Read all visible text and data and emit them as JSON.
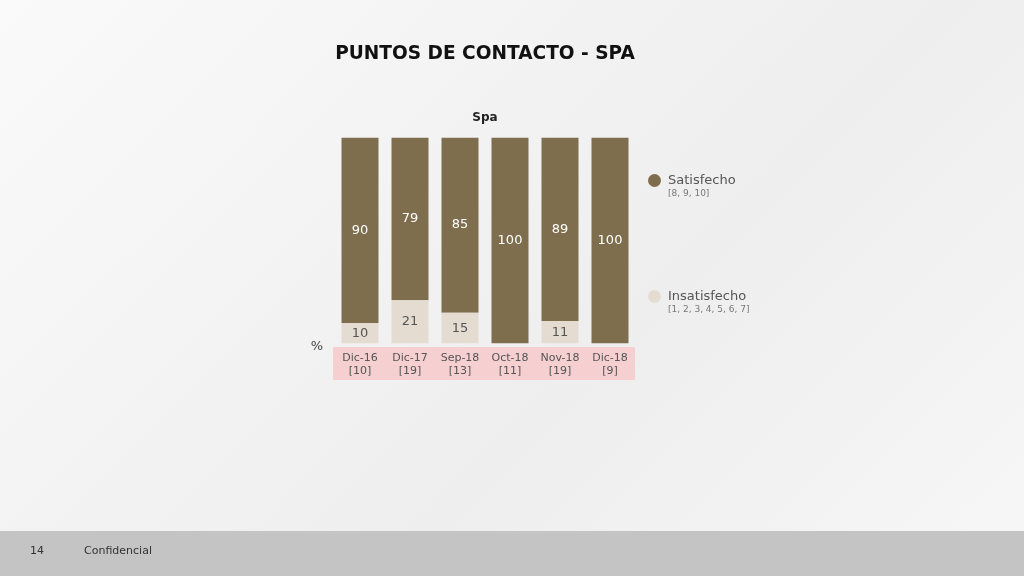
{
  "chart_data": {
    "type": "bar",
    "title": "PUNTOS DE CONTACTO - SPA",
    "subtitle": "Spa",
    "ylabel": "%",
    "categories": [
      "Dic-16\n[10]",
      "Dic-17\n[19]",
      "Sep-18\n[13]",
      "Oct-18\n[11]",
      "Nov-18\n[19]",
      "Dic-18\n[9]"
    ],
    "stacked": true,
    "ylim": [
      0,
      100
    ],
    "legend": "right",
    "grid": false,
    "series": [
      {
        "name": "Insatisfecho\n[1, 2, 3, 4, 5, 6, 7]",
        "color": "#e4dcd1",
        "values": [
          10,
          21,
          15,
          0,
          11,
          0
        ],
        "value_labels": [
          "10",
          "21",
          "15",
          null,
          "11",
          null
        ]
      },
      {
        "name": "Satisfecho\n[8, 9, 10]",
        "color": "#7f6e4e",
        "values": [
          90,
          79,
          85,
          100,
          89,
          100
        ],
        "value_labels": [
          "90",
          "79",
          "85",
          "100",
          "89",
          "100"
        ]
      }
    ],
    "annotations": [
      "14",
      "Confidencial"
    ]
  }
}
